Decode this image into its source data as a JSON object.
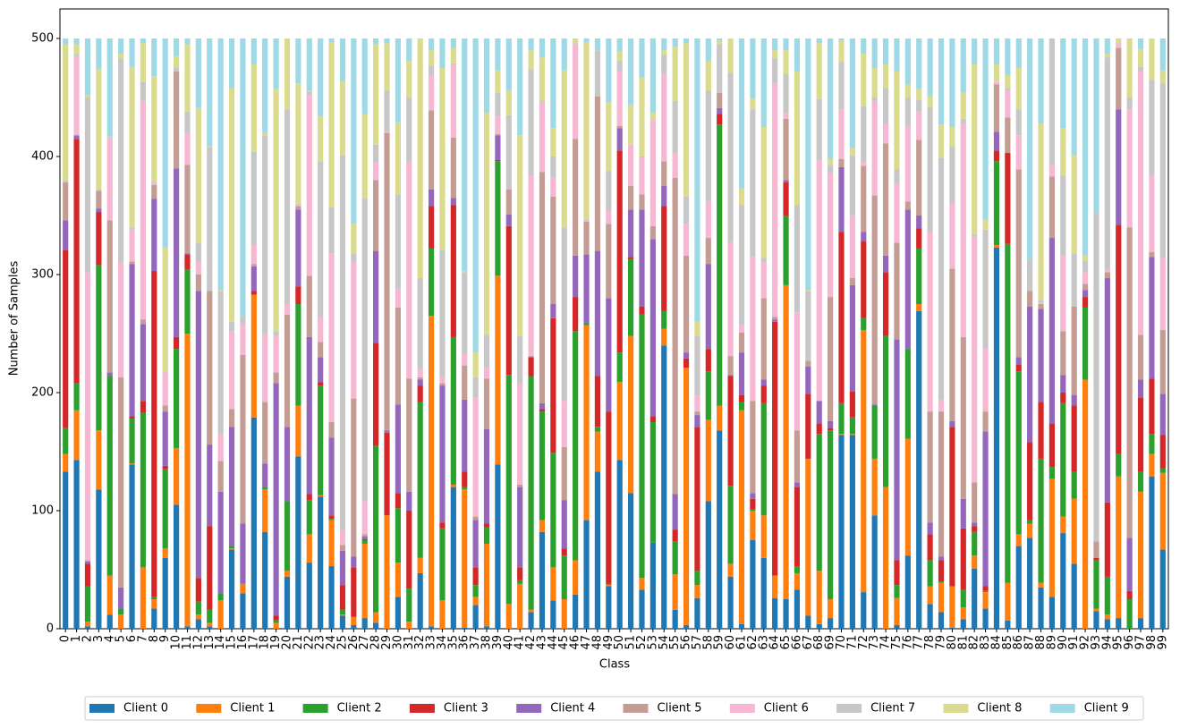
{
  "chart_data": {
    "type": "stacked_bar",
    "x_label": "Class",
    "y_label": "Number of Samples",
    "ylim": [
      0,
      525
    ],
    "yticks": [
      0,
      100,
      200,
      300,
      400,
      500
    ],
    "grid": false,
    "legend_position": "bottom",
    "categories": [
      "0",
      "1",
      "2",
      "3",
      "4",
      "5",
      "6",
      "7",
      "8",
      "9",
      "10",
      "11",
      "12",
      "13",
      "14",
      "15",
      "16",
      "17",
      "18",
      "19",
      "20",
      "21",
      "22",
      "23",
      "24",
      "25",
      "26",
      "27",
      "28",
      "29",
      "30",
      "31",
      "32",
      "33",
      "34",
      "35",
      "36",
      "37",
      "38",
      "39",
      "40",
      "41",
      "42",
      "43",
      "44",
      "45",
      "46",
      "47",
      "48",
      "49",
      "50",
      "51",
      "52",
      "53",
      "54",
      "55",
      "56",
      "57",
      "58",
      "59",
      "60",
      "61",
      "62",
      "63",
      "64",
      "65",
      "66",
      "67",
      "68",
      "69",
      "70",
      "71",
      "72",
      "73",
      "74",
      "75",
      "76",
      "77",
      "78",
      "79",
      "80",
      "81",
      "82",
      "83",
      "84",
      "85",
      "86",
      "87",
      "88",
      "89",
      "90",
      "91",
      "92",
      "93",
      "94",
      "95",
      "96",
      "97",
      "98",
      "99"
    ],
    "series": [
      {
        "name": "Client 0",
        "color": "#1f77b4",
        "values": [
          133,
          143,
          2,
          118,
          12,
          0,
          139,
          0,
          17,
          60,
          105,
          2,
          8,
          2,
          0,
          67,
          30,
          179,
          82,
          0,
          44,
          146,
          56,
          112,
          53,
          11,
          3,
          9,
          5,
          0,
          27,
          0,
          47,
          2,
          0,
          120,
          1,
          20,
          2,
          139,
          0,
          0,
          14,
          82,
          24,
          0,
          29,
          92,
          133,
          36,
          143,
          115,
          33,
          73,
          240,
          16,
          3,
          26,
          108,
          168,
          44,
          4,
          75,
          60,
          26,
          25,
          33,
          11,
          4,
          9,
          164,
          164,
          31,
          96,
          0,
          3,
          62,
          269,
          21,
          14,
          1,
          8,
          51,
          17,
          323,
          7,
          70,
          77,
          35,
          27,
          81,
          55,
          0,
          15,
          8,
          9,
          0,
          9,
          129,
          67
        ]
      },
      {
        "name": "Client 1",
        "color": "#ff7f0e",
        "values": [
          15,
          42,
          4,
          50,
          33,
          12,
          1,
          52,
          8,
          8,
          48,
          248,
          4,
          3,
          24,
          1,
          8,
          104,
          36,
          5,
          5,
          43,
          24,
          1,
          39,
          1,
          7,
          63,
          9,
          96,
          29,
          6,
          13,
          263,
          24,
          2,
          117,
          7,
          70,
          160,
          21,
          38,
          2,
          10,
          28,
          25,
          29,
          165,
          34,
          1,
          66,
          133,
          10,
          0,
          14,
          30,
          218,
          11,
          69,
          21,
          11,
          181,
          25,
          36,
          19,
          266,
          14,
          133,
          45,
          16,
          1,
          1,
          222,
          48,
          120,
          23,
          99,
          6,
          15,
          25,
          35,
          10,
          11,
          14,
          2,
          32,
          10,
          12,
          4,
          100,
          14,
          55,
          211,
          2,
          4,
          120,
          0,
          107,
          19,
          65
        ]
      },
      {
        "name": "Client 2",
        "color": "#2ca02c",
        "values": [
          22,
          23,
          30,
          140,
          169,
          5,
          38,
          131,
          2,
          67,
          84,
          54,
          11,
          11,
          6,
          2,
          0,
          0,
          2,
          2,
          59,
          86,
          29,
          93,
          1,
          4,
          0,
          3,
          141,
          0,
          46,
          28,
          132,
          57,
          61,
          125,
          2,
          10,
          14,
          97,
          194,
          3,
          198,
          92,
          97,
          37,
          194,
          2,
          4,
          1,
          25,
          65,
          223,
          102,
          15,
          28,
          0,
          12,
          41,
          238,
          66,
          7,
          1,
          95,
          0,
          59,
          6,
          0,
          116,
          143,
          26,
          14,
          10,
          45,
          128,
          11,
          76,
          47,
          22,
          1,
          0,
          15,
          20,
          1,
          71,
          287,
          138,
          3,
          105,
          10,
          96,
          23,
          61,
          41,
          32,
          19,
          25,
          17,
          17,
          4
        ]
      },
      {
        "name": "Client 3",
        "color": "#d62728",
        "values": [
          151,
          207,
          19,
          45,
          0,
          0,
          2,
          10,
          276,
          3,
          10,
          13,
          20,
          71,
          0,
          0,
          0,
          3,
          0,
          4,
          0,
          15,
          5,
          3,
          3,
          21,
          42,
          1,
          87,
          70,
          13,
          66,
          14,
          36,
          5,
          112,
          13,
          15,
          3,
          1,
          126,
          11,
          16,
          2,
          114,
          6,
          29,
          0,
          43,
          146,
          171,
          2,
          7,
          5,
          89,
          10,
          8,
          122,
          19,
          9,
          93,
          6,
          9,
          15,
          215,
          28,
          67,
          55,
          9,
          2,
          145,
          22,
          65,
          0,
          54,
          21,
          0,
          17,
          22,
          18,
          135,
          52,
          5,
          4,
          9,
          77,
          6,
          66,
          48,
          37,
          9,
          56,
          9,
          2,
          63,
          194,
          7,
          63,
          47,
          28
        ]
      },
      {
        "name": "Client 4",
        "color": "#9467bd",
        "values": [
          25,
          3,
          2,
          3,
          3,
          18,
          129,
          65,
          61,
          46,
          143,
          1,
          243,
          69,
          86,
          101,
          51,
          21,
          20,
          197,
          63,
          65,
          133,
          21,
          66,
          29,
          9,
          2,
          78,
          2,
          75,
          16,
          5,
          14,
          116,
          6,
          61,
          40,
          80,
          21,
          10,
          68,
          0,
          5,
          12,
          41,
          35,
          58,
          106,
          96,
          19,
          40,
          82,
          150,
          17,
          30,
          5,
          10,
          72,
          5,
          1,
          36,
          5,
          5,
          2,
          2,
          4,
          23,
          19,
          6,
          55,
          90,
          8,
          1,
          14,
          187,
          118,
          11,
          10,
          3,
          5,
          25,
          3,
          131,
          16,
          0,
          6,
          115,
          79,
          157,
          15,
          9,
          6,
          0,
          190,
          98,
          45,
          15,
          103,
          35
        ]
      },
      {
        "name": "Client 5",
        "color": "#c49c94",
        "values": [
          32,
          0,
          1,
          15,
          129,
          178,
          2,
          4,
          12,
          5,
          82,
          75,
          14,
          130,
          26,
          15,
          143,
          2,
          52,
          9,
          95,
          3,
          52,
          13,
          13,
          5,
          134,
          2,
          60,
          252,
          82,
          96,
          2,
          67,
          2,
          51,
          29,
          3,
          43,
          1,
          21,
          2,
          1,
          196,
          91,
          45,
          99,
          28,
          131,
          63,
          2,
          20,
          13,
          11,
          21,
          268,
          82,
          3,
          22,
          13,
          16,
          17,
          78,
          69,
          2,
          52,
          44,
          5,
          0,
          105,
          7,
          6,
          56,
          177,
          95,
          82,
          7,
          64,
          94,
          123,
          129,
          137,
          34,
          17,
          40,
          30,
          159,
          13,
          4,
          52,
          37,
          75,
          5,
          14,
          5,
          52,
          263,
          38,
          4,
          54
        ]
      },
      {
        "name": "Client 6",
        "color": "#f7b6d2",
        "values": [
          0,
          67,
          244,
          0,
          69,
          97,
          27,
          185,
          1,
          28,
          0,
          27,
          11,
          0,
          23,
          66,
          26,
          16,
          58,
          31,
          9,
          1,
          153,
          21,
          143,
          12,
          116,
          28,
          15,
          1,
          16,
          183,
          7,
          30,
          5,
          62,
          10,
          101,
          9,
          15,
          0,
          85,
          153,
          59,
          16,
          39,
          80,
          1,
          0,
          11,
          46,
          35,
          31,
          90,
          74,
          21,
          27,
          14,
          31,
          0,
          96,
          6,
          122,
          30,
          198,
          5,
          100,
          0,
          204,
          105,
          42,
          53,
          3,
          80,
          17,
          50,
          64,
          24,
          152,
          10,
          56,
          181,
          208,
          53,
          2,
          23,
          29,
          0,
          1,
          10,
          64,
          0,
          10,
          0,
          2,
          3,
          100,
          223,
          65,
          61
        ]
      },
      {
        "name": "Client 7",
        "color": "#c7c7c7",
        "values": [
          2,
          2,
          148,
          1,
          1,
          173,
          2,
          16,
          1,
          1,
          3,
          18,
          16,
          122,
          121,
          8,
          7,
          79,
          168,
          4,
          165,
          1,
          3,
          132,
          39,
          318,
          7,
          257,
          15,
          35,
          80,
          55,
          77,
          8,
          108,
          1,
          69,
          17,
          28,
          20,
          63,
          41,
          90,
          1,
          18,
          147,
          1,
          1,
          39,
          34,
          9,
          0,
          1,
          0,
          16,
          44,
          23,
          50,
          94,
          41,
          144,
          102,
          125,
          4,
          21,
          33,
          91,
          59,
          52,
          7,
          40,
          51,
          48,
          3,
          30,
          12,
          24,
          10,
          106,
          205,
          47,
          4,
          2,
          101,
          0,
          2,
          22,
          27,
          2,
          107,
          68,
          45,
          10,
          279,
          180,
          1,
          10,
          4,
          81,
          148
        ]
      },
      {
        "name": "Client 8",
        "color": "#dbdb8d",
        "values": [
          115,
          8,
          2,
          102,
          1,
          4,
          136,
          33,
          90,
          105,
          10,
          57,
          114,
          1,
          1,
          198,
          0,
          74,
          2,
          205,
          60,
          102,
          1,
          38,
          140,
          63,
          25,
          71,
          85,
          40,
          61,
          31,
          203,
          13,
          154,
          13,
          1,
          21,
          188,
          19,
          21,
          170,
          16,
          37,
          24,
          133,
          4,
          150,
          0,
          58,
          8,
          34,
          67,
          6,
          4,
          46,
          130,
          12,
          25,
          3,
          29,
          14,
          9,
          111,
          7,
          20,
          113,
          1,
          47,
          5,
          18,
          6,
          44,
          25,
          20,
          83,
          11,
          9,
          9,
          28,
          17,
          22,
          144,
          9,
          15,
          11,
          35,
          0,
          150,
          0,
          40,
          83,
          4,
          0,
          3,
          4,
          50,
          15,
          35,
          11
        ]
      },
      {
        "name": "Client 9",
        "color": "#9edae5",
        "values": [
          5,
          5,
          48,
          26,
          83,
          13,
          24,
          4,
          32,
          177,
          15,
          5,
          59,
          91,
          213,
          42,
          235,
          22,
          80,
          43,
          0,
          38,
          44,
          66,
          3,
          36,
          157,
          64,
          5,
          4,
          71,
          19,
          0,
          10,
          25,
          8,
          197,
          266,
          63,
          27,
          44,
          82,
          10,
          16,
          76,
          27,
          0,
          3,
          10,
          54,
          11,
          56,
          33,
          63,
          10,
          7,
          4,
          240,
          19,
          2,
          0,
          127,
          51,
          75,
          10,
          10,
          28,
          213,
          4,
          102,
          2,
          93,
          13,
          25,
          22,
          28,
          39,
          43,
          49,
          73,
          75,
          46,
          22,
          153,
          22,
          31,
          25,
          187,
          72,
          0,
          76,
          99,
          184,
          147,
          13,
          0,
          0,
          9,
          0,
          27
        ]
      }
    ]
  }
}
